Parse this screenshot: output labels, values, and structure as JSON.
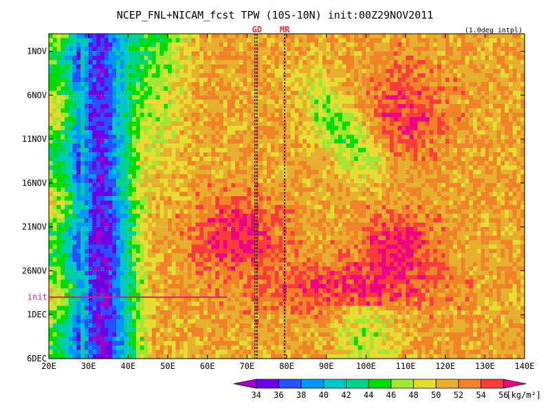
{
  "chart_data": {
    "type": "heatmap",
    "title": "NCEP_FNL+NICAM_fcst TPW (10S-10N) init:00Z29NOV2011",
    "note": "(1.0deg intpl)",
    "x_ticks": [
      "20E",
      "30E",
      "40E",
      "50E",
      "60E",
      "70E",
      "80E",
      "90E",
      "100E",
      "110E",
      "120E",
      "130E",
      "140E"
    ],
    "x_range": [
      20,
      140
    ],
    "y_ticks": [
      {
        "label": "1NOV",
        "day": 1
      },
      {
        "label": "6NOV",
        "day": 6
      },
      {
        "label": "11NOV",
        "day": 11
      },
      {
        "label": "16NOV",
        "day": 16
      },
      {
        "label": "21NOV",
        "day": 21
      },
      {
        "label": "26NOV",
        "day": 26
      },
      {
        "label": "1DEC",
        "day": 31
      },
      {
        "label": "6DEC",
        "day": 36
      }
    ],
    "y_range_days": [
      -1,
      36
    ],
    "init_label": "init",
    "init_day": 29,
    "markers": [
      {
        "label": "GD",
        "lon": 72.5
      },
      {
        "label": "MR",
        "lon": 79.5
      }
    ],
    "colorbar": {
      "unit": "[kg/m²]",
      "levels": [
        "34",
        "36",
        "38",
        "40",
        "42",
        "44",
        "46",
        "48",
        "50",
        "52",
        "54",
        "56"
      ],
      "colors": [
        "#a000c8",
        "#6e00e6",
        "#2850ff",
        "#0096ff",
        "#00c8c8",
        "#00d28c",
        "#00dc00",
        "#a0e632",
        "#e6dc32",
        "#e6af2d",
        "#f08228",
        "#fa3c3c",
        "#f00082"
      ]
    },
    "colors": {
      "init_line": "#e0148c",
      "marker_text": "#ff2a2a"
    }
  }
}
